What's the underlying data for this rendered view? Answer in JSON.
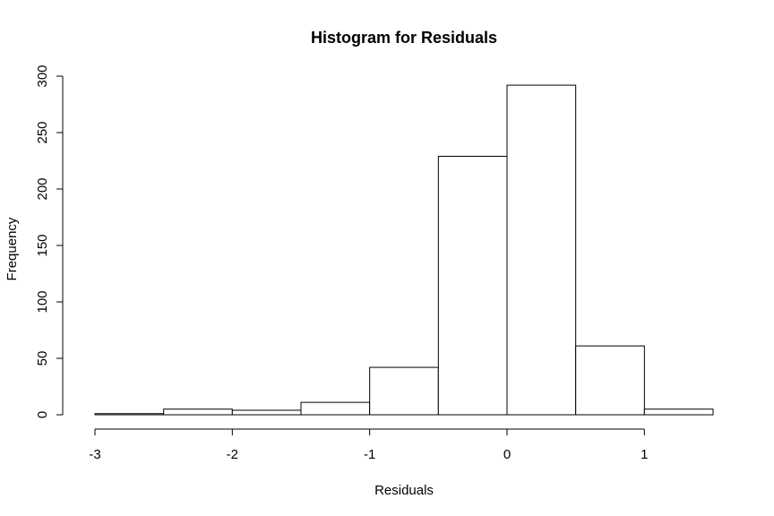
{
  "chart_data": {
    "type": "bar",
    "title": "Histogram for Residuals",
    "xlabel": "Residuals",
    "ylabel": "Frequency",
    "bins": [
      {
        "x0": -3.0,
        "x1": -2.5,
        "count": 1
      },
      {
        "x0": -2.5,
        "x1": -2.0,
        "count": 5
      },
      {
        "x0": -2.0,
        "x1": -1.5,
        "count": 4
      },
      {
        "x0": -1.5,
        "x1": -1.0,
        "count": 11
      },
      {
        "x0": -1.0,
        "x1": -0.5,
        "count": 42
      },
      {
        "x0": -0.5,
        "x1": 0.0,
        "count": 229
      },
      {
        "x0": 0.0,
        "x1": 0.5,
        "count": 292
      },
      {
        "x0": 0.5,
        "x1": 1.0,
        "count": 61
      },
      {
        "x0": 1.0,
        "x1": 1.5,
        "count": 5
      }
    ],
    "xticks": [
      -3,
      -2,
      -1,
      0,
      1
    ],
    "yticks": [
      0,
      50,
      100,
      150,
      200,
      250,
      300
    ],
    "xlim": [
      -3,
      1.5
    ],
    "ylim": [
      0,
      300
    ],
    "grid": false,
    "colors": {
      "bar_fill": "#ffffff",
      "bar_stroke": "#000000"
    }
  }
}
